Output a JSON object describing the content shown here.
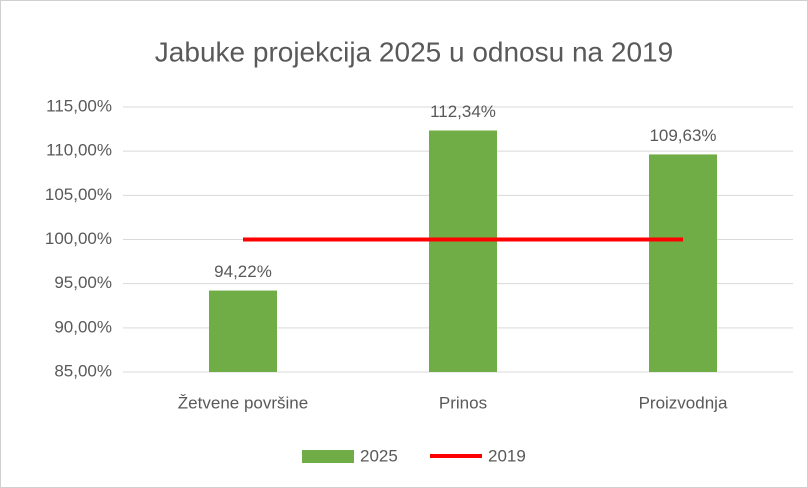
{
  "chart_data": {
    "type": "bar",
    "title": "Jabuke projekcija 2025 u odnosu na 2019",
    "categories": [
      "Žetvene površine",
      "Prinos",
      "Proizvodnja"
    ],
    "series": [
      {
        "name": "2025",
        "type": "bar",
        "color": "#70ad47",
        "values": [
          94.22,
          112.34,
          109.63
        ],
        "value_labels": [
          "94,22%",
          "112,34%",
          "109,63%"
        ]
      },
      {
        "name": "2019",
        "type": "line",
        "color": "#ff0000",
        "values": [
          100,
          100,
          100
        ]
      }
    ],
    "ylim": [
      85,
      115
    ],
    "yticks": [
      {
        "value": 85,
        "label": "85,00%"
      },
      {
        "value": 90,
        "label": "90,00%"
      },
      {
        "value": 95,
        "label": "95,00%"
      },
      {
        "value": 100,
        "label": "100,00%"
      },
      {
        "value": 105,
        "label": "105,00%"
      },
      {
        "value": 110,
        "label": "110,00%"
      },
      {
        "value": 115,
        "label": "115,00%"
      }
    ],
    "grid": true,
    "legend": "bottom"
  }
}
